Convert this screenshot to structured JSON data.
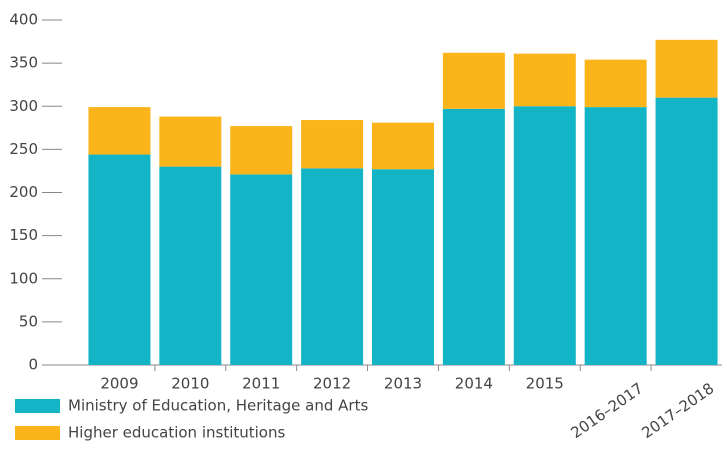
{
  "chart_data": {
    "type": "stacked_bar",
    "categories": [
      "2009",
      "2010",
      "2011",
      "2012",
      "2013",
      "2014",
      "2015",
      "2016–2017",
      "2017–2018"
    ],
    "series": [
      {
        "name": "Ministry of Education, Heritage and Arts",
        "color": "#12b4c6",
        "values": [
          244,
          230,
          221,
          228,
          227,
          297,
          300,
          299,
          310
        ]
      },
      {
        "name": "Higher education institutions",
        "color": "#fbb41a",
        "values": [
          55,
          58,
          56,
          56,
          54,
          65,
          61,
          55,
          67
        ]
      }
    ],
    "ylim": [
      0,
      400
    ],
    "yticks": [
      0,
      50,
      100,
      150,
      200,
      250,
      300,
      350,
      400
    ],
    "grid": false
  }
}
